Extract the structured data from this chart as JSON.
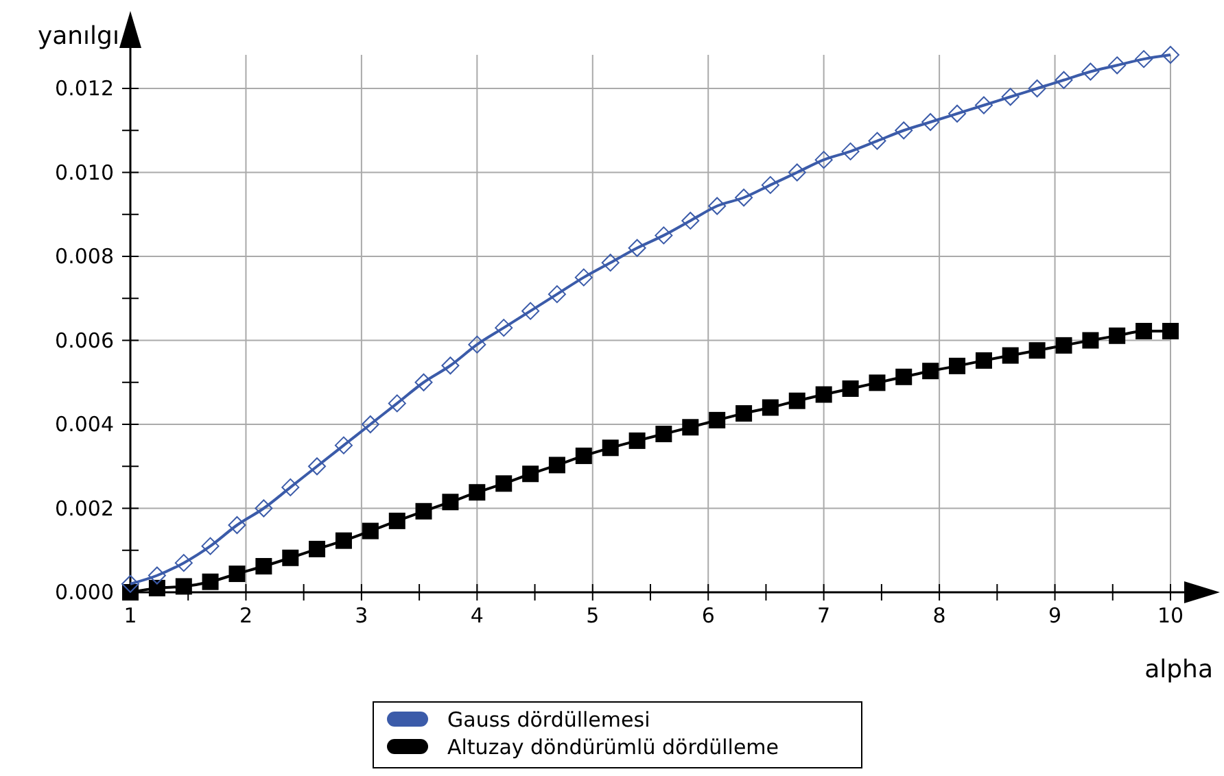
{
  "chart_data": {
    "type": "line",
    "xlabel": "alpha",
    "ylabel": "yanılgı",
    "x": [
      1,
      1.231,
      1.462,
      1.692,
      1.923,
      2.154,
      2.385,
      2.615,
      2.846,
      3.077,
      3.308,
      3.538,
      3.769,
      4,
      4.231,
      4.462,
      4.692,
      4.923,
      5.154,
      5.385,
      5.615,
      5.846,
      6.077,
      6.308,
      6.538,
      6.769,
      7,
      7.231,
      7.462,
      7.692,
      7.923,
      8.154,
      8.385,
      8.615,
      8.846,
      9.077,
      9.308,
      9.538,
      9.769,
      10
    ],
    "series": [
      {
        "name": "Gauss dördüllemesi",
        "color": "#3b5ba9",
        "marker": "diamond",
        "values": [
          0.0002,
          0.0004,
          0.0007,
          0.0011,
          0.0016,
          0.002,
          0.0025,
          0.003,
          0.0035,
          0.004,
          0.0045,
          0.005,
          0.0054,
          0.0059,
          0.0063,
          0.0067,
          0.0071,
          0.0075,
          0.00785,
          0.0082,
          0.0085,
          0.00885,
          0.0092,
          0.0094,
          0.0097,
          0.01,
          0.0103,
          0.0105,
          0.01075,
          0.011,
          0.0112,
          0.0114,
          0.0116,
          0.0118,
          0.012,
          0.0122,
          0.0124,
          0.01255,
          0.0127,
          0.0128
        ]
      },
      {
        "name": "Altuzay döndürümlü dördülleme",
        "color": "#000000",
        "marker": "square",
        "values": [
          0,
          0.0001,
          0.00014,
          0.00025,
          0.00044,
          0.00062,
          0.00082,
          0.00103,
          0.00123,
          0.00146,
          0.0017,
          0.00193,
          0.00215,
          0.00238,
          0.00259,
          0.00282,
          0.00303,
          0.00325,
          0.00344,
          0.00361,
          0.00377,
          0.00393,
          0.0041,
          0.00426,
          0.0044,
          0.00456,
          0.00471,
          0.00485,
          0.00499,
          0.00513,
          0.00527,
          0.00539,
          0.00552,
          0.00564,
          0.00576,
          0.00588,
          0.006,
          0.00611,
          0.00622,
          0.00622
        ]
      }
    ],
    "xlim": [
      1,
      10
    ],
    "ylim": [
      0,
      0.0128
    ],
    "xticks": [
      1,
      {
        "value": 1.5,
        "label": null
      },
      2,
      {
        "value": 2.5,
        "label": null
      },
      3,
      {
        "value": 3.5,
        "label": null
      },
      4,
      {
        "value": 4.5,
        "label": null
      },
      5,
      {
        "value": 5.5,
        "label": null
      },
      6,
      {
        "value": 6.5,
        "label": null
      },
      7,
      {
        "value": 7.5,
        "label": null
      },
      8,
      {
        "value": 8.5,
        "label": null
      },
      9,
      {
        "value": 9.5,
        "label": null
      },
      10
    ],
    "yticks": [
      {
        "value": 0,
        "label": "0.000"
      },
      {
        "value": 0.001,
        "label": null
      },
      {
        "value": 0.002,
        "label": "0.002"
      },
      {
        "value": 0.003,
        "label": null
      },
      {
        "value": 0.004,
        "label": "0.004"
      },
      {
        "value": 0.005,
        "label": null
      },
      {
        "value": 0.006,
        "label": "0.006"
      },
      {
        "value": 0.007,
        "label": null
      },
      {
        "value": 0.008,
        "label": "0.008"
      },
      {
        "value": 0.009,
        "label": null
      },
      {
        "value": 0.01,
        "label": "0.010"
      },
      {
        "value": 0.011,
        "label": null
      },
      {
        "value": 0.012,
        "label": "0.012"
      }
    ],
    "grid": true,
    "legend": "bottom",
    "line_style": "solid"
  }
}
